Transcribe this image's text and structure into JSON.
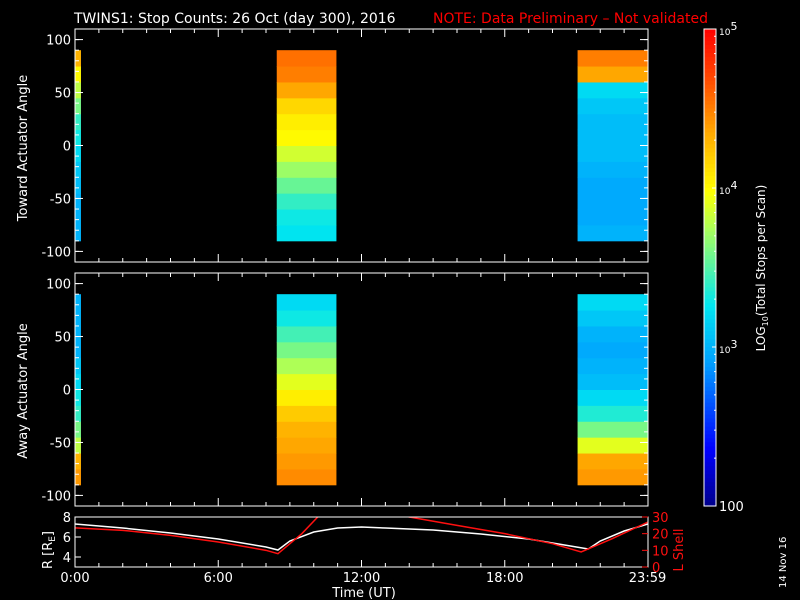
{
  "title": {
    "main": "TWINS1: Stop Counts: 26 Oct (day 300), 2016",
    "note": "NOTE: Data Preliminary – Not validated"
  },
  "side_date": "14 Nov 16",
  "colors": {
    "background": "#000000",
    "axes": "#ffffff",
    "note": "#ff0000",
    "r_line": "#ffffff",
    "lshell_line": "#ff1010"
  },
  "chart_data": [
    {
      "type": "heatmap",
      "panel": "toward",
      "ylabel": "Toward Actuator Angle",
      "ylim": [
        -110,
        110
      ],
      "yticks": [
        100,
        50,
        0,
        -50,
        -100
      ],
      "xlim": [
        0,
        24
      ],
      "angle_range": [
        -90,
        90
      ],
      "blocks": [
        {
          "start": 0.0,
          "end": 0.25,
          "angle_logs": [
            3.0,
            3.0,
            3.0,
            3.05,
            3.1,
            3.2,
            3.3,
            3.4,
            3.6,
            3.8,
            4.0,
            4.3
          ]
        },
        {
          "start": 8.45,
          "end": 10.95,
          "angle_logs": [
            3.25,
            3.3,
            3.4,
            3.55,
            3.7,
            3.85,
            4.0,
            4.05,
            4.15,
            4.35,
            4.5,
            4.55
          ]
        },
        {
          "start": 21.05,
          "end": 24.0,
          "angle_logs": [
            3.0,
            2.95,
            2.95,
            2.95,
            3.0,
            3.05,
            3.05,
            3.05,
            3.1,
            3.2,
            4.35,
            4.5
          ]
        }
      ]
    },
    {
      "type": "heatmap",
      "panel": "away",
      "ylabel": "Away Actuator Angle",
      "ylim": [
        -110,
        110
      ],
      "yticks": [
        100,
        50,
        0,
        -50,
        -100
      ],
      "xlim": [
        0,
        24
      ],
      "angle_range": [
        -90,
        90
      ],
      "blocks": [
        {
          "start": 0.0,
          "end": 0.25,
          "angle_logs": [
            4.4,
            4.3,
            3.8,
            3.6,
            3.4,
            3.3,
            3.2,
            3.1,
            3.0,
            3.0,
            3.0,
            3.0
          ]
        },
        {
          "start": 8.45,
          "end": 10.95,
          "angle_logs": [
            4.45,
            4.4,
            4.35,
            4.3,
            4.2,
            4.05,
            3.9,
            3.75,
            3.6,
            3.45,
            3.3,
            3.2
          ]
        },
        {
          "start": 21.05,
          "end": 24.0,
          "angle_logs": [
            4.4,
            4.35,
            3.9,
            3.6,
            3.35,
            3.2,
            3.05,
            3.0,
            2.95,
            3.0,
            3.1,
            3.2
          ]
        }
      ]
    },
    {
      "type": "line",
      "panel": "orbit",
      "ylabel": "R [R",
      "ylabel_sub": "E",
      "ylabel_end": "]",
      "y2label": "L Shell",
      "xlabel": "Time (UT)",
      "xticks": [
        "0:00",
        "6:00",
        "12:00",
        "18:00",
        "23:59"
      ],
      "xtick_values": [
        0,
        6,
        12,
        18,
        23.98
      ],
      "xlim": [
        0,
        24
      ],
      "ylim": [
        3,
        8
      ],
      "yticks": [
        8,
        6,
        4
      ],
      "y2lim": [
        0,
        30
      ],
      "y2ticks": [
        30,
        20,
        10,
        0
      ],
      "series": [
        {
          "key": "R",
          "x": [
            0,
            2,
            4,
            6,
            8,
            8.5,
            9,
            10,
            11,
            12,
            13,
            15,
            17,
            19,
            21,
            21.5,
            22,
            23,
            24
          ],
          "y": [
            7.3,
            6.9,
            6.4,
            5.8,
            5.0,
            4.7,
            5.6,
            6.5,
            6.9,
            7.0,
            6.9,
            6.7,
            6.3,
            5.8,
            5.0,
            4.8,
            5.6,
            6.6,
            7.3
          ]
        },
        {
          "key": "L",
          "x": [
            0,
            2,
            4,
            6,
            8,
            8.5,
            9.5,
            10.5,
            11.5,
            12.5,
            14,
            16,
            18,
            20,
            21.2,
            22.5,
            24
          ],
          "y": [
            23.5,
            22,
            19,
            15,
            10,
            8,
            20,
            35,
            35,
            35,
            30,
            25,
            20,
            14,
            9,
            17,
            27
          ]
        }
      ]
    },
    {
      "type": "colorbar",
      "label": "LOG",
      "label_sub": "10",
      "label_end": "(Total Stops per Scan)",
      "range_log": [
        2,
        5
      ],
      "ticks": [
        {
          "log": 5,
          "base": "10",
          "exp": "5"
        },
        {
          "log": 4,
          "base": "10",
          "exp": "4"
        },
        {
          "log": 3,
          "base": "10",
          "exp": "3"
        },
        {
          "log": 2,
          "base": "100",
          "exp": ""
        }
      ]
    }
  ]
}
